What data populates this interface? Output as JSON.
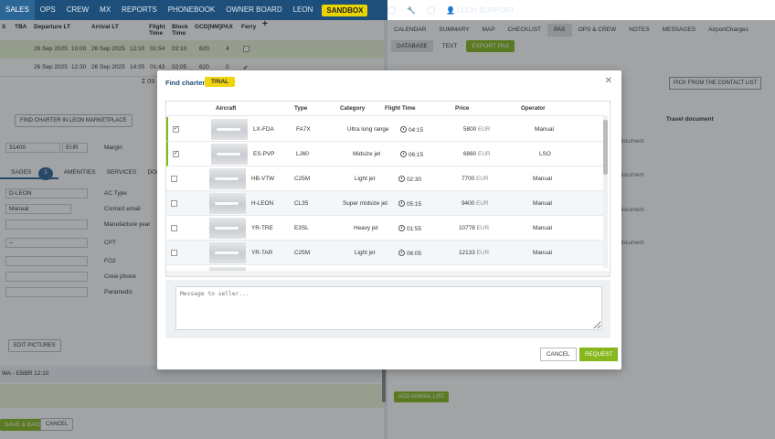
{
  "topnav": {
    "items": [
      "SALES",
      "OPS",
      "CREW",
      "MX",
      "REPORTS",
      "PHONEBOOK",
      "OWNER BOARD",
      "LEON"
    ],
    "sandbox": "SANDBOX",
    "user": "LEON SUPPORT"
  },
  "trips": {
    "headers": [
      "S",
      "TBA",
      "Departure LT",
      "Arrival LT",
      "Flight Time",
      "Block Time",
      "GCD[NM]",
      "PAX",
      "Ferry"
    ],
    "rows": [
      {
        "dep_date": "26 Sep 2025",
        "dep_time": "10:00",
        "arr_date": "26 Sep 2025",
        "arr_time": "12:10",
        "flight": "01:54",
        "block": "02:10",
        "gcd": "620",
        "pax": "4"
      },
      {
        "dep_date": "26 Sep 2025",
        "dep_time": "12:30",
        "arr_date": "26 Sep 2025",
        "arr_time": "14:35",
        "flight": "01:43",
        "block": "02:05",
        "gcd": "620",
        "pax": "0"
      }
    ],
    "sum_label": "Σ",
    "sum_value": "03"
  },
  "left_form": {
    "find_marketplace": "FIND CHARTER IN LEON MARKETPLACE",
    "price": "31400",
    "currency": "EUR",
    "margin_label": "Margin",
    "tabs": [
      "SAGES",
      "AMENITIES",
      "SERVICES",
      "DOCUMENTS"
    ],
    "tab_badge": "3",
    "aircraft": "D-LEON",
    "mode": "Manual",
    "ac_type_label": "AC Type",
    "contact_email_label": "Contact email",
    "manufacture_label": "Manufacture year",
    "cpt_label": "CPT",
    "fo2_label": "FO2",
    "crew_phone_label": "Crew phone",
    "paramedic_label": "Paramedic",
    "edit_pictures": "EDIT PICTURES",
    "route": "WA - EBBR 12:10",
    "save_back": "SAVE & BACK",
    "cancel": "CANCEL"
  },
  "right_panel": {
    "tabs": [
      "CALENDAR",
      "SUMMARY",
      "MAP",
      "CHECKLIST",
      "PAX",
      "OPS & CREW",
      "NOTES",
      "MESSAGES",
      "AirportCharges"
    ],
    "subtabs": [
      "DATABASE",
      "TEXT",
      "EXPORT PAX"
    ],
    "pick_contact": "PICK FROM THE CONTACT LIST",
    "travel_document": "Travel document",
    "doc_placeholder": "document",
    "add_animal": "ADD ANIMAL LIST"
  },
  "modal": {
    "title": "Find charter",
    "trial": "TRIAL",
    "columns": [
      "Aircraft",
      "Type",
      "Category",
      "Flight Time",
      "Price",
      "Operator"
    ],
    "rows": [
      {
        "reg": "LX-FDA",
        "type": "FA7X",
        "category": "Ultra long range",
        "time": "04:15",
        "price": "5800",
        "cur": "EUR",
        "operator": "Manual",
        "checked": true
      },
      {
        "reg": "ES-PVP",
        "type": "LJ60",
        "category": "Midsize jet",
        "time": "06:15",
        "price": "6860",
        "cur": "EUR",
        "operator": "LSO",
        "checked": true
      },
      {
        "reg": "HB-VTW",
        "type": "C25M",
        "category": "Light jet",
        "time": "02:30",
        "price": "7700",
        "cur": "EUR",
        "operator": "Manual",
        "checked": false
      },
      {
        "reg": "H-LEON",
        "type": "CL35",
        "category": "Super midsize jet",
        "time": "05:15",
        "price": "9400",
        "cur": "EUR",
        "operator": "Manual",
        "checked": false
      },
      {
        "reg": "YR-TRE",
        "type": "E3SL",
        "category": "Heavy jet",
        "time": "01:55",
        "price": "10778",
        "cur": "EUR",
        "operator": "Manual",
        "checked": false
      },
      {
        "reg": "YR-TAR",
        "type": "C25M",
        "category": "Light jet",
        "time": "06:05",
        "price": "12133",
        "cur": "EUR",
        "operator": "Manual",
        "checked": false
      }
    ],
    "message_placeholder": "Message to seller...",
    "cancel": "CANCEL",
    "request": "REQUEST"
  },
  "colors": {
    "nav": "#1d4f7a",
    "accent_green": "#86b81d",
    "trial_yellow": "#f1d40d"
  }
}
